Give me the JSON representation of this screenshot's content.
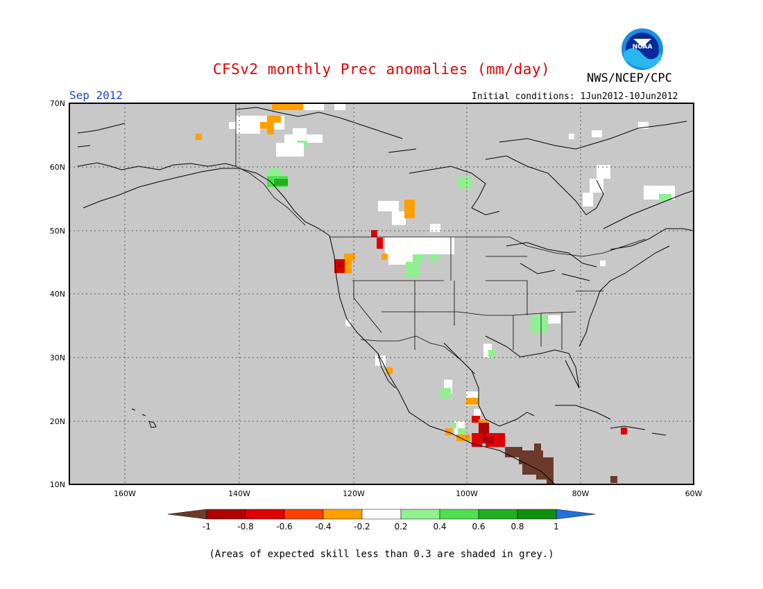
{
  "title": "CFSv2 monthly Prec anomalies (mm/day)",
  "agency": "NWS/NCEP/CPC",
  "logo_text": "NOAA",
  "month": "Sep 2012",
  "initial_conditions": "Initial conditions: 1Jun2012-10Jun2012",
  "lat_labels": [
    "70N",
    "60N",
    "50N",
    "40N",
    "30N",
    "20N",
    "10N"
  ],
  "lon_labels": [
    "160W",
    "140W",
    "120W",
    "100W",
    "80W",
    "60W"
  ],
  "colorbar": {
    "labels": [
      "-1",
      "-0.8",
      "-0.6",
      "-0.4",
      "-0.2",
      "0.2",
      "0.4",
      "0.6",
      "0.8",
      "1"
    ],
    "colors": [
      "#6b3a2a",
      "#b00000",
      "#e00000",
      "#ff4000",
      "#ffa000",
      "#ffffff",
      "#90f090",
      "#50e050",
      "#20b020",
      "#109010",
      "#2070e0"
    ]
  },
  "note": "(Areas of expected skill less than 0.3 are shaded in grey.)",
  "colors": {
    "background": "#c8c8c8",
    "title": "#e00000",
    "month": "#2040d0"
  }
}
